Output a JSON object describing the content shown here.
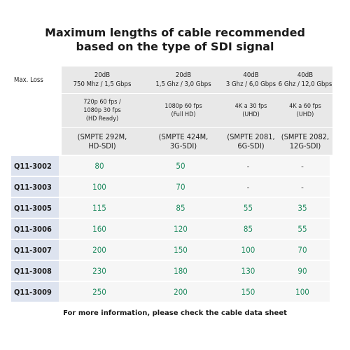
{
  "title": {
    "line1": "Maximum lengths of cable recommended",
    "line2": "based on the type of SDI signal"
  },
  "table": {
    "row_header": "Max. Loss",
    "columns": [
      {
        "loss": "20dB",
        "bandwidth": "750 Mhz / 1,5 Gbps",
        "format_lines": [
          "720p 60 fps /",
          "1080p 30 fps",
          "(HD Ready)"
        ],
        "standard_lines": [
          "(SMPTE 292M,",
          "HD-SDI)"
        ]
      },
      {
        "loss": "20dB",
        "bandwidth": "1,5 Ghz / 3,0 Gbps",
        "format_lines": [
          "1080p 60 fps",
          "(Full HD)"
        ],
        "standard_lines": [
          "(SMPTE 424M,",
          "3G-SDI)"
        ]
      },
      {
        "loss": "40dB",
        "bandwidth": "3 Ghz / 6,0 Gbps",
        "format_lines": [
          "4K a 30 fps",
          "(UHD)"
        ],
        "standard_lines": [
          "(SMPTE 2081,",
          "6G-SDI)"
        ]
      },
      {
        "loss": "40dB",
        "bandwidth": "6 Ghz / 12,0 Gbps",
        "format_lines": [
          "4K a 60 fps",
          "(UHD)"
        ],
        "standard_lines": [
          "(SMPTE 2082,",
          "12G-SDI)"
        ]
      }
    ],
    "rows": [
      {
        "model": "Q11-3002",
        "values": [
          "80",
          "50",
          "-",
          "-"
        ]
      },
      {
        "model": "Q11-3003",
        "values": [
          "100",
          "70",
          "-",
          "-"
        ]
      },
      {
        "model": "Q11-3005",
        "values": [
          "115",
          "85",
          "55",
          "35"
        ]
      },
      {
        "model": "Q11-3006",
        "values": [
          "160",
          "120",
          "85",
          "55"
        ]
      },
      {
        "model": "Q11-3007",
        "values": [
          "200",
          "150",
          "100",
          "70"
        ]
      },
      {
        "model": "Q11-3008",
        "values": [
          "230",
          "180",
          "130",
          "90"
        ]
      },
      {
        "model": "Q11-3009",
        "values": [
          "250",
          "200",
          "150",
          "100"
        ]
      }
    ]
  },
  "footer": "For more information, please check the cable data sheet",
  "colors": {
    "value_text": "#1f8a5f",
    "header_bg": "#e8e8e8",
    "model_bg": "#dde3ef",
    "cell_bg": "#f6f6f6"
  }
}
